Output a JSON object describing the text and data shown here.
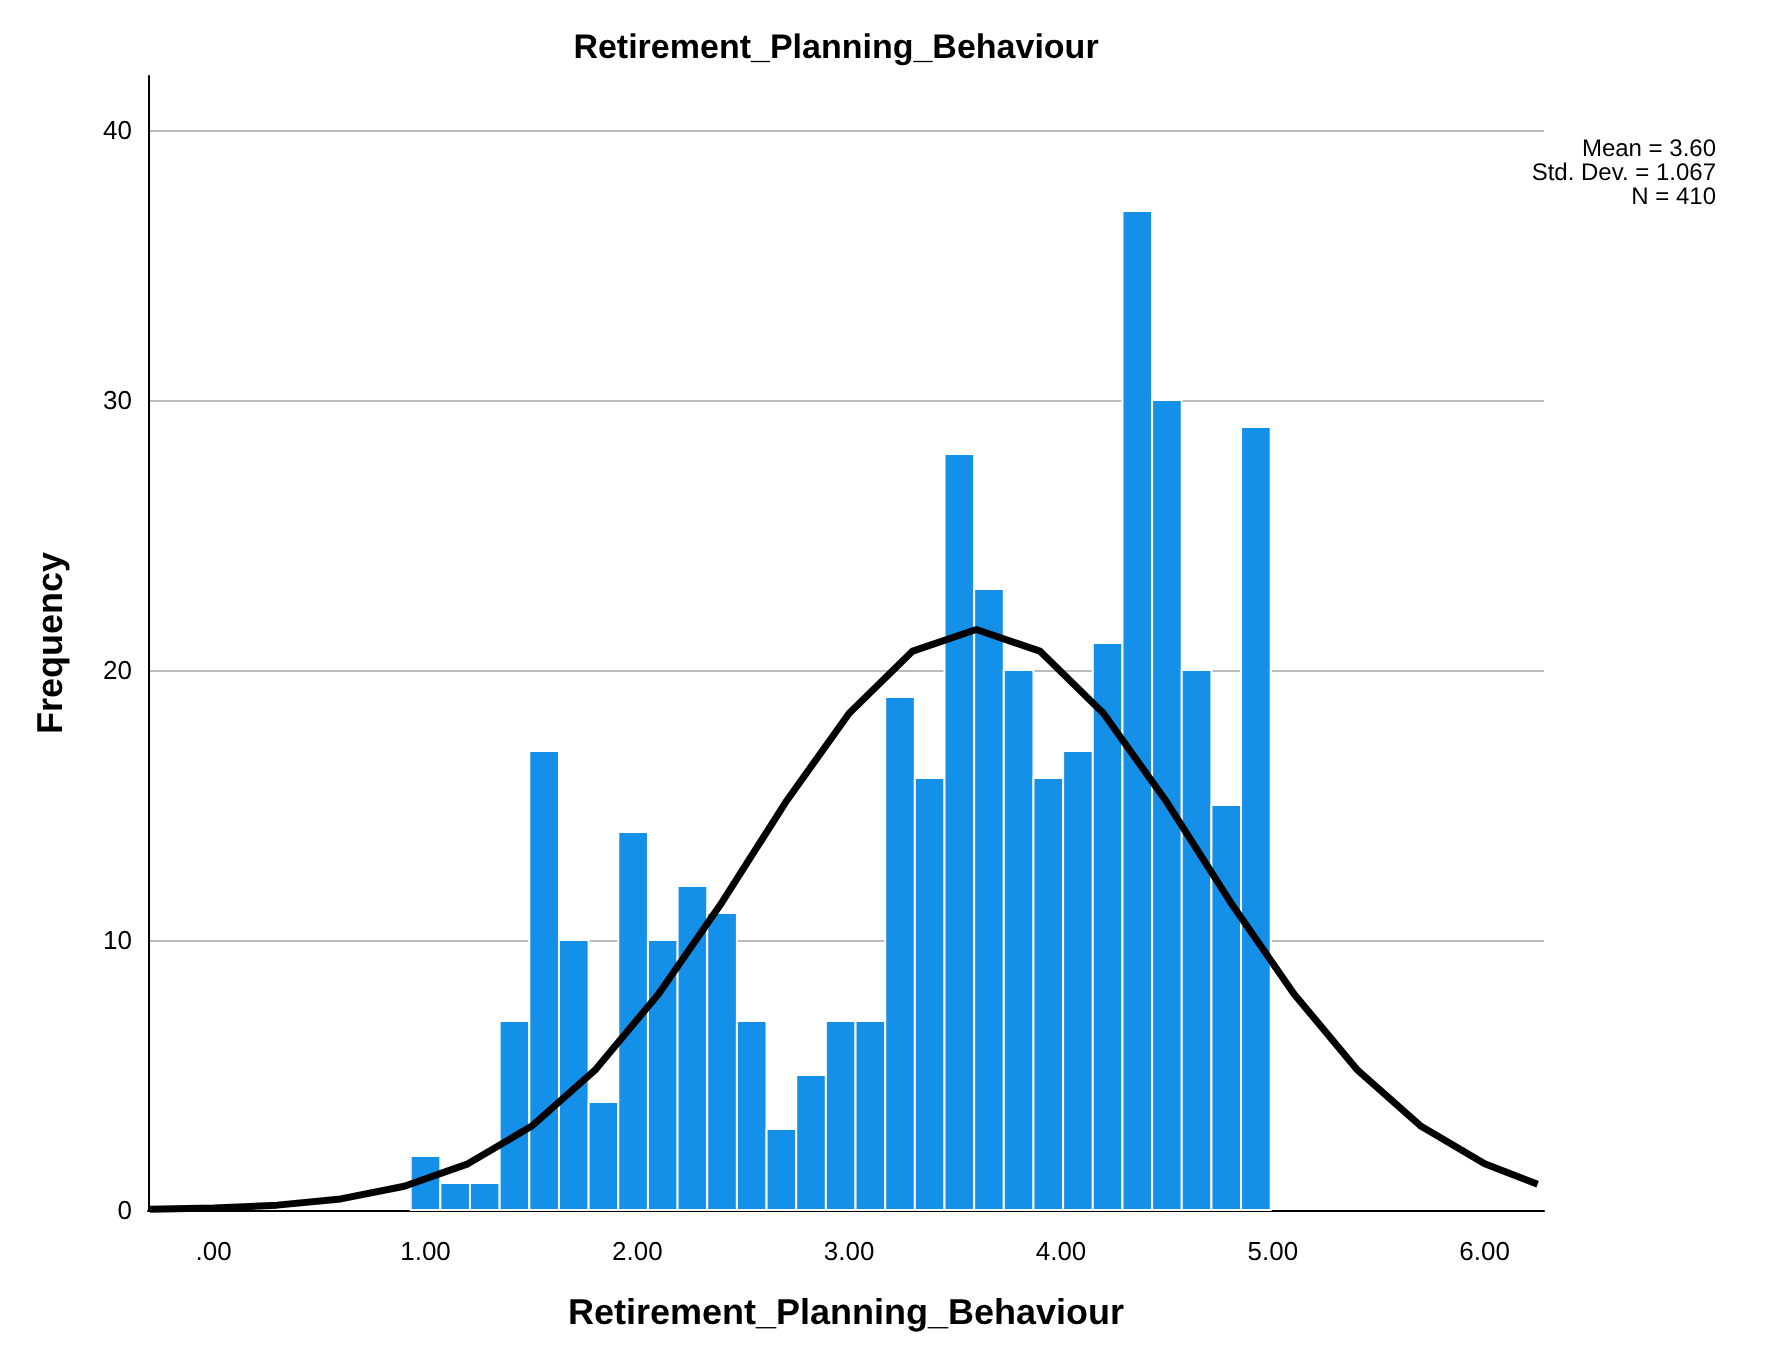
{
  "chart_data": {
    "type": "histogram",
    "title": "Retirement_Planning_Behaviour",
    "xlabel": "Retirement_Planning_Behaviour",
    "ylabel": "Frequency",
    "bins": [
      0.93,
      1.07,
      1.21,
      1.35,
      1.49,
      1.63,
      1.77,
      1.91,
      2.05,
      2.19,
      2.33,
      2.47,
      2.61,
      2.75,
      2.89,
      3.03,
      3.17,
      3.31,
      3.45,
      3.59,
      3.73,
      3.87,
      4.01,
      4.15,
      4.29,
      4.43,
      4.57,
      4.71,
      4.85,
      4.99
    ],
    "values": [
      2,
      1,
      1,
      7,
      17,
      10,
      4,
      14,
      10,
      12,
      11,
      7,
      3,
      5,
      7,
      7,
      19,
      16,
      28,
      23,
      20,
      16,
      17,
      21,
      37,
      30,
      20,
      15,
      29
    ],
    "color": "#1590e8",
    "series": [
      {
        "type": "line",
        "color": "#000000",
        "x": [
          -0.3,
          0,
          0.3,
          0.6,
          0.9,
          1.2,
          1.5,
          1.8,
          2.1,
          2.4,
          2.7,
          3.0,
          3.3,
          3.6,
          3.9,
          4.2,
          4.5,
          4.8,
          5.1,
          5.4,
          5.7,
          6.0,
          6.25
        ],
        "values": [
          0.03,
          0.07,
          0.18,
          0.41,
          0.88,
          1.71,
          3.1,
          5.18,
          8.0,
          11.4,
          15.1,
          18.4,
          20.7,
          21.5,
          20.7,
          18.4,
          15.1,
          11.4,
          8.0,
          5.18,
          3.1,
          1.71,
          0.95
        ]
      }
    ],
    "xlim": [
      -0.31,
      6.28
    ],
    "ylim": [
      0,
      42
    ],
    "xticks": [
      {
        "value": 0,
        "label": ".00"
      },
      {
        "value": 1,
        "label": "1.00"
      },
      {
        "value": 2,
        "label": "2.00"
      },
      {
        "value": 3,
        "label": "3.00"
      },
      {
        "value": 4,
        "label": "4.00"
      },
      {
        "value": 5,
        "label": "5.00"
      },
      {
        "value": 6,
        "label": "6.00"
      }
    ],
    "yticks": [
      0,
      10,
      20,
      30,
      40
    ],
    "grid": "y",
    "annotations": [
      "Mean = 3.60",
      "Std. Dev. = 1.067",
      "N = 410"
    ]
  }
}
